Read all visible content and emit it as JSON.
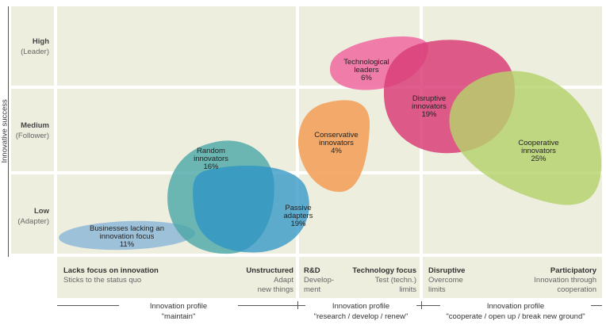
{
  "y_axis": {
    "title": "Innovative success",
    "levels": [
      {
        "name": "High",
        "sub": "(Leader)"
      },
      {
        "name": "Medium",
        "sub": "(Follower)"
      },
      {
        "name": "Low",
        "sub": "(Adapter)"
      }
    ]
  },
  "bubbles": [
    {
      "id": "lacking",
      "line1": "Businesses lacking an",
      "line2": "innovation focus",
      "pct": "11%",
      "color": "#8fb9d9"
    },
    {
      "id": "random",
      "line1": "Random",
      "line2": "innovators",
      "pct": "16%",
      "color": "#4aa6a6"
    },
    {
      "id": "passive",
      "line1": "Passive",
      "line2": "adapters",
      "pct": "19%",
      "color": "#3399c9"
    },
    {
      "id": "conservative",
      "line1": "Conservative",
      "line2": "innovators",
      "pct": "4%",
      "color": "#f2a15c"
    },
    {
      "id": "technological",
      "line1": "Technological",
      "line2": "leaders",
      "pct": "6%",
      "color": "#ee6fa3"
    },
    {
      "id": "disruptive",
      "line1": "Disruptive",
      "line2": "innovators",
      "pct": "19%",
      "color": "#d94079"
    },
    {
      "id": "cooperative",
      "line1": "Cooperative",
      "line2": "innovators",
      "pct": "25%",
      "color": "#bcd57a"
    }
  ],
  "columns": [
    {
      "left_title": "Lacks focus on innovation",
      "left_sub": "Sticks to the status quo",
      "right_title": "Unstructured",
      "right_sub1": "Adapt",
      "right_sub2": "new things"
    },
    {
      "left_title": "R&D",
      "left_sub1": "Develop-",
      "left_sub2": "ment",
      "right_title": "Technology focus",
      "right_sub1": "Test (techn.)",
      "right_sub2": "limits"
    },
    {
      "left_title": "Disruptive",
      "left_sub1": "Overcome",
      "left_sub2": "limits",
      "right_title": "Participatory",
      "right_sub1": "Innovation through",
      "right_sub2": "cooperation"
    }
  ],
  "profiles": [
    {
      "label": "Innovation profile",
      "value": "\"maintain\""
    },
    {
      "label": "Innovation profile",
      "value": "\"research / develop / renew\""
    },
    {
      "label": "Innovation profile",
      "value": "\"cooperate / open up / break new ground\""
    }
  ]
}
